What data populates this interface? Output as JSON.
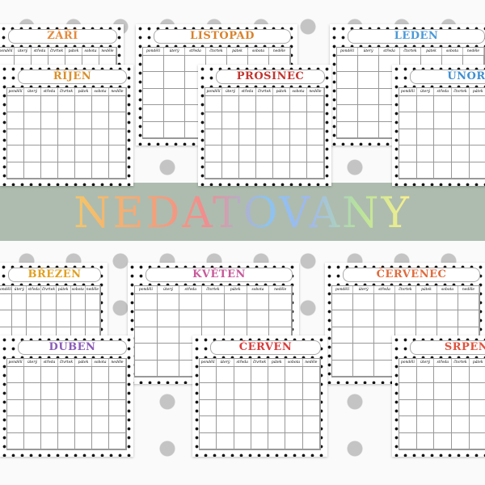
{
  "banner": {
    "title": "NEDATOVANY"
  },
  "weekdays": [
    "pondělí",
    "úterý",
    "středa",
    "čtvrtek",
    "pátek",
    "sobota",
    "neděle"
  ],
  "months": [
    "ZÁŘÍ",
    "LISTOPAD",
    "LEDEN",
    "ŘÍJEN",
    "PROSINEC",
    "ÚNOR",
    "BŘEZEN",
    "KVĚTEN",
    "ČERVENEC",
    "DUBEN",
    "ČERVEN",
    "SRPEN"
  ]
}
